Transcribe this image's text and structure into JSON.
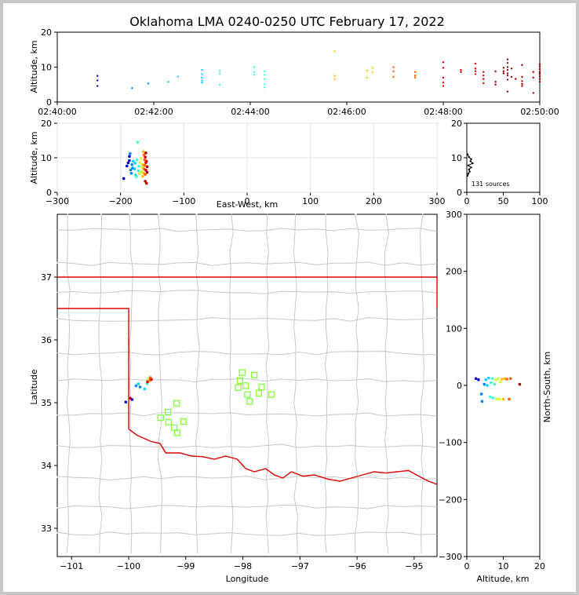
{
  "title": "Oklahoma LMA 0240-0250 UTC February 17, 2022",
  "colors": {
    "state_border": "#e00000",
    "county_lines": "#c8c8c8",
    "stations": "#80ff40",
    "time_scale": [
      "#0000c8",
      "#0080ff",
      "#00d0ff",
      "#40ffd0",
      "#d0ff40",
      "#ffc000",
      "#ff6000",
      "#e00000",
      "#a00000"
    ]
  },
  "chart_data": [
    {
      "type": "scatter",
      "panel": "altitude-time",
      "ylabel": "Altitude, km",
      "ylim": [
        0,
        20
      ],
      "yticks": [
        "0",
        "10",
        "20"
      ],
      "xlim": [
        "02:40:00",
        "02:50:00"
      ],
      "xticks": [
        "02:40:00",
        "02:42:00",
        "02:44:00",
        "02:46:00",
        "02:48:00",
        "02:50:00"
      ],
      "points": [
        [
          "02:40:50",
          7.5
        ],
        [
          "02:40:50",
          6.2
        ],
        [
          "02:40:50",
          4.6
        ],
        [
          "02:41:33",
          4.0
        ],
        [
          "02:41:53",
          5.3
        ],
        [
          "02:42:18",
          5.8
        ],
        [
          "02:42:30",
          7.3
        ],
        [
          "02:43:00",
          9.2
        ],
        [
          "02:43:00",
          8.0
        ],
        [
          "02:43:00",
          7.0
        ],
        [
          "02:43:00",
          6.2
        ],
        [
          "02:43:00",
          5.6
        ],
        [
          "02:43:22",
          9.0
        ],
        [
          "02:43:22",
          8.2
        ],
        [
          "02:43:22",
          5.0
        ],
        [
          "02:44:05",
          10.0
        ],
        [
          "02:44:05",
          8.6
        ],
        [
          "02:44:05",
          7.8
        ],
        [
          "02:44:18",
          8.8
        ],
        [
          "02:44:18",
          7.8
        ],
        [
          "02:44:18",
          6.6
        ],
        [
          "02:44:18",
          5.0
        ],
        [
          "02:44:18",
          4.2
        ],
        [
          "02:45:45",
          14.5
        ],
        [
          "02:45:45",
          7.5
        ],
        [
          "02:45:45",
          6.6
        ],
        [
          "02:46:25",
          9.0
        ],
        [
          "02:46:25",
          7.0
        ],
        [
          "02:46:32",
          9.8
        ],
        [
          "02:46:32",
          8.6
        ],
        [
          "02:46:58",
          10.0
        ],
        [
          "02:46:58",
          8.8
        ],
        [
          "02:46:58",
          7.2
        ],
        [
          "02:47:25",
          8.6
        ],
        [
          "02:47:25",
          7.6
        ],
        [
          "02:47:25",
          7.0
        ],
        [
          "02:48:00",
          11.4
        ],
        [
          "02:48:00",
          9.8
        ],
        [
          "02:48:00",
          7.0
        ],
        [
          "02:48:00",
          5.6
        ],
        [
          "02:48:00",
          4.6
        ],
        [
          "02:48:22",
          9.2
        ],
        [
          "02:48:22",
          8.6
        ],
        [
          "02:48:40",
          11.0
        ],
        [
          "02:48:40",
          9.6
        ],
        [
          "02:48:40",
          8.8
        ],
        [
          "02:48:40",
          8.0
        ],
        [
          "02:48:50",
          8.6
        ],
        [
          "02:48:50",
          7.6
        ],
        [
          "02:48:50",
          6.6
        ],
        [
          "02:48:50",
          5.4
        ],
        [
          "02:49:05",
          8.8
        ],
        [
          "02:49:05",
          5.8
        ],
        [
          "02:49:05",
          5.0
        ],
        [
          "02:49:15",
          9.8
        ],
        [
          "02:49:15",
          8.8
        ],
        [
          "02:49:15",
          8.2
        ],
        [
          "02:49:20",
          12.2
        ],
        [
          "02:49:20",
          11.2
        ],
        [
          "02:49:20",
          10.0
        ],
        [
          "02:49:20",
          9.2
        ],
        [
          "02:49:20",
          8.2
        ],
        [
          "02:49:20",
          7.6
        ],
        [
          "02:49:20",
          6.4
        ],
        [
          "02:49:20",
          3.0
        ],
        [
          "02:49:25",
          9.6
        ],
        [
          "02:49:25",
          7.2
        ],
        [
          "02:49:30",
          6.6
        ],
        [
          "02:49:38",
          10.6
        ],
        [
          "02:49:38",
          7.2
        ],
        [
          "02:49:38",
          6.0
        ],
        [
          "02:49:38",
          5.2
        ],
        [
          "02:49:38",
          4.6
        ],
        [
          "02:49:52",
          8.6
        ],
        [
          "02:49:52",
          7.0
        ],
        [
          "02:49:52",
          2.6
        ],
        [
          "02:50:00",
          10.2
        ],
        [
          "02:50:00",
          9.4
        ],
        [
          "02:50:00",
          8.6
        ],
        [
          "02:50:00",
          8.2
        ],
        [
          "02:50:00",
          10.8
        ],
        [
          "02:50:00",
          8.0
        ],
        [
          "02:50:00",
          7.4
        ],
        [
          "02:50:00",
          6.6
        ],
        [
          "02:50:00",
          5.8
        ]
      ]
    },
    {
      "type": "scatter",
      "panel": "altitude-eastwest",
      "xlabel": "East-West, km",
      "ylabel": "Altitude, km",
      "xlim": [
        -300,
        300
      ],
      "ylim": [
        0,
        20
      ],
      "xticks": [
        "−300",
        "−200",
        "−100",
        "0",
        "100",
        "200",
        "300"
      ],
      "yticks": [
        "0",
        "10",
        "20"
      ],
      "points": [
        [
          -195,
          4.0
        ],
        [
          -190,
          7.6
        ],
        [
          -188,
          8.5
        ],
        [
          -186,
          9.2
        ],
        [
          -186,
          10.4
        ],
        [
          -185,
          11.2
        ],
        [
          -184,
          6.5
        ],
        [
          -183,
          5.5
        ],
        [
          -182,
          8.0
        ],
        [
          -181,
          7.0
        ],
        [
          -180,
          9.0
        ],
        [
          -178,
          6.8
        ],
        [
          -177,
          8.4
        ],
        [
          -176,
          5.0
        ],
        [
          -175,
          4.5
        ],
        [
          -174,
          9.4
        ],
        [
          -173,
          14.5
        ],
        [
          -172,
          6.2
        ],
        [
          -171,
          7.6
        ],
        [
          -170,
          5.4
        ],
        [
          -169,
          8.6
        ],
        [
          -168,
          9.8
        ],
        [
          -167,
          6.0
        ],
        [
          -166,
          7.2
        ],
        [
          -165,
          4.6
        ],
        [
          -165,
          8.0
        ],
        [
          -164,
          5.6
        ],
        [
          -164,
          11.8
        ],
        [
          -163,
          10.8
        ],
        [
          -163,
          6.8
        ],
        [
          -162,
          9.4
        ],
        [
          -162,
          7.8
        ],
        [
          -161,
          5.2
        ],
        [
          -161,
          10.2
        ],
        [
          -160,
          8.6
        ],
        [
          -160,
          6.4
        ],
        [
          -159,
          2.6
        ],
        [
          -159,
          9.0
        ],
        [
          -158,
          7.4
        ],
        [
          -158,
          5.8
        ],
        [
          -160,
          11.4
        ],
        [
          -161,
          3.2
        ]
      ]
    },
    {
      "type": "histogram",
      "panel": "altitude-count",
      "xlim": [
        0,
        100
      ],
      "ylim": [
        0,
        20
      ],
      "xticks": [
        "0",
        "50",
        "100"
      ],
      "yticks": [
        "0",
        "10",
        "20"
      ],
      "annotation": "131 sources",
      "points": [
        [
          1,
          4.8
        ],
        [
          2,
          5.4
        ],
        [
          4,
          6.0
        ],
        [
          3,
          6.6
        ],
        [
          6,
          7.2
        ],
        [
          2,
          7.8
        ],
        [
          8,
          8.4
        ],
        [
          5,
          9.0
        ],
        [
          6,
          9.6
        ],
        [
          3,
          10.2
        ],
        [
          1,
          11.0
        ]
      ]
    },
    {
      "type": "scatter",
      "panel": "plan-view",
      "xlabel": "Longitude",
      "ylabel": "Latitude",
      "xlim": [
        -101.25,
        -94.6
      ],
      "ylim": [
        32.55,
        38.0
      ],
      "xticks": [
        "−101",
        "−100",
        "−99",
        "−98",
        "−97",
        "−96",
        "−95"
      ],
      "yticks": [
        "33",
        "34",
        "35",
        "36",
        "37"
      ],
      "stations": [
        [
          -98.01,
          35.48
        ],
        [
          -98.05,
          35.35
        ],
        [
          -98.08,
          35.24
        ],
        [
          -97.95,
          35.27
        ],
        [
          -97.8,
          35.44
        ],
        [
          -97.67,
          35.25
        ],
        [
          -97.72,
          35.15
        ],
        [
          -97.92,
          35.13
        ],
        [
          -97.88,
          35.02
        ],
        [
          -97.5,
          35.13
        ],
        [
          -99.16,
          34.99
        ],
        [
          -99.31,
          34.85
        ],
        [
          -99.44,
          34.76
        ],
        [
          -99.3,
          34.69
        ],
        [
          -99.04,
          34.7
        ],
        [
          -99.2,
          34.6
        ],
        [
          -99.15,
          34.52
        ]
      ],
      "points": [
        [
          -100.05,
          35.01
        ],
        [
          -99.94,
          35.05
        ],
        [
          -99.87,
          35.27
        ],
        [
          -99.8,
          35.25
        ],
        [
          -99.83,
          35.3
        ],
        [
          -99.72,
          35.22
        ],
        [
          -99.68,
          35.3
        ],
        [
          -99.66,
          35.36
        ],
        [
          -99.65,
          35.38
        ],
        [
          -99.64,
          35.35
        ],
        [
          -99.63,
          35.38
        ],
        [
          -99.62,
          35.36
        ],
        [
          -99.62,
          35.4
        ],
        [
          -99.6,
          35.37
        ],
        [
          -99.67,
          35.33
        ],
        [
          -99.97,
          35.07
        ]
      ]
    },
    {
      "type": "scatter",
      "panel": "northsouth-altitude",
      "xlabel": "Altitude, km",
      "ylabel": "North-South, km",
      "xlim": [
        0,
        20
      ],
      "ylim": [
        -300,
        300
      ],
      "xticks": [
        "0",
        "10",
        "20"
      ],
      "yticks": [
        "−300",
        "−200",
        "−100",
        "0",
        "100",
        "200",
        "300"
      ],
      "points": [
        [
          2.5,
          12
        ],
        [
          3.2,
          10
        ],
        [
          4,
          -15
        ],
        [
          4.2,
          -28
        ],
        [
          4.8,
          2
        ],
        [
          5.2,
          10
        ],
        [
          5.6,
          0
        ],
        [
          6,
          13
        ],
        [
          6.4,
          -20
        ],
        [
          6.6,
          5
        ],
        [
          7,
          12
        ],
        [
          7.2,
          -22
        ],
        [
          7.6,
          2
        ],
        [
          8,
          10
        ],
        [
          8.2,
          -24
        ],
        [
          8.6,
          12
        ],
        [
          9,
          -24
        ],
        [
          9.2,
          6
        ],
        [
          9.6,
          11
        ],
        [
          10,
          -24
        ],
        [
          10.4,
          12
        ],
        [
          11,
          11
        ],
        [
          11.6,
          -24
        ],
        [
          12,
          12
        ],
        [
          14.5,
          2
        ]
      ]
    }
  ]
}
